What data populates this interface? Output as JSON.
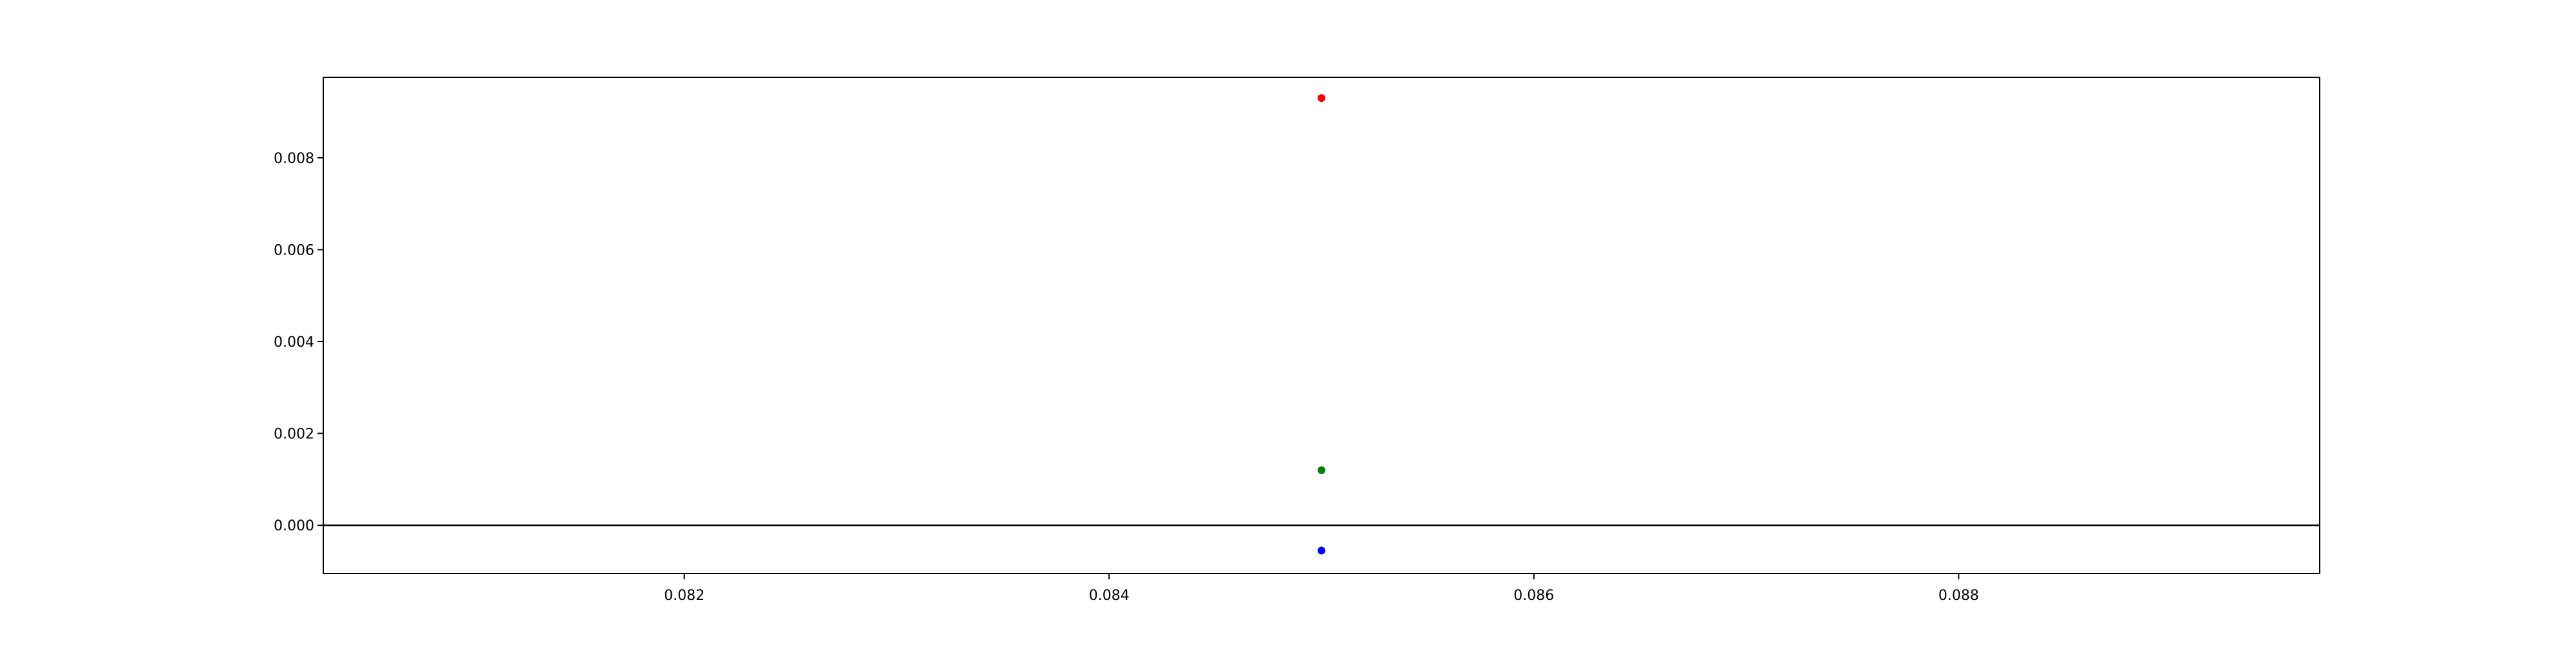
{
  "chart_data": {
    "type": "scatter",
    "title": "",
    "xlabel": "",
    "ylabel": "",
    "xlim": [
      0.0803,
      0.0897
    ],
    "ylim": [
      -0.00105,
      0.00975
    ],
    "x_ticks": [
      0.082,
      0.084,
      0.086,
      0.088
    ],
    "x_tick_labels": [
      "0.082",
      "0.084",
      "0.086",
      "0.088"
    ],
    "y_ticks": [
      0.0,
      0.002,
      0.004,
      0.006,
      0.008
    ],
    "y_tick_labels": [
      "0.000",
      "0.002",
      "0.004",
      "0.006",
      "0.008"
    ],
    "grid": false,
    "hline": 0.0,
    "series": [
      {
        "color": "#ff0000",
        "points": [
          {
            "x": 0.085,
            "y": 0.0093
          }
        ]
      },
      {
        "color": "#008000",
        "points": [
          {
            "x": 0.085,
            "y": 0.0012
          }
        ]
      },
      {
        "color": "#0000ff",
        "points": [
          {
            "x": 0.085,
            "y": -0.00055
          }
        ]
      }
    ]
  }
}
